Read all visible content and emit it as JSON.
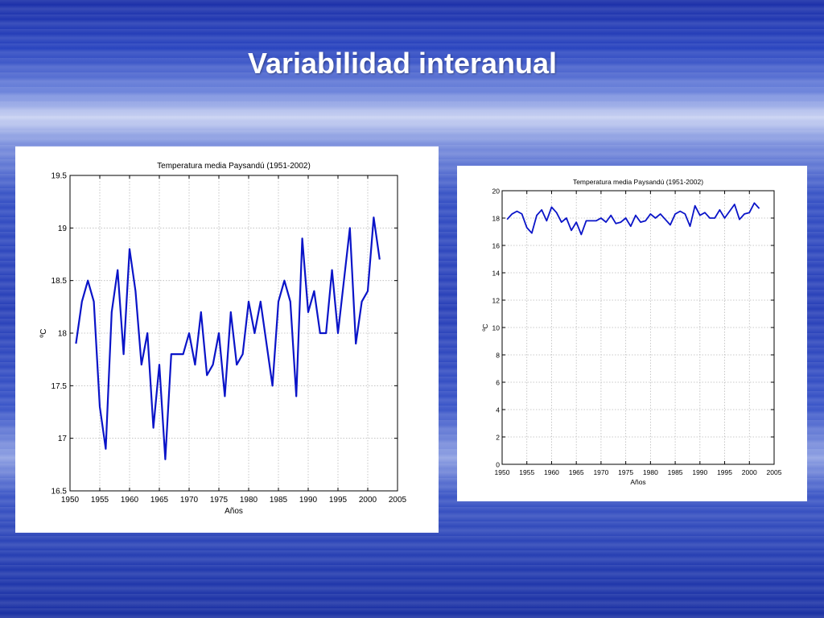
{
  "slide": {
    "title": "Variabilidad interanual"
  },
  "chart_data": [
    {
      "type": "line",
      "title": "Temperatura media Paysandú (1951-2002)",
      "xlabel": "Años",
      "ylabel": "ºC",
      "xlim": [
        1950,
        2005
      ],
      "ylim": [
        16.5,
        19.5
      ],
      "xticks": [
        1950,
        1955,
        1960,
        1965,
        1970,
        1975,
        1980,
        1985,
        1990,
        1995,
        2000,
        2005
      ],
      "yticks": [
        16.5,
        17,
        17.5,
        18,
        18.5,
        19,
        19.5
      ],
      "ytick_labels": [
        "16.5",
        "17",
        "17.5",
        "18",
        "18.5",
        "19",
        "19.5"
      ],
      "grid": true,
      "color": "#0a14c8",
      "x": [
        1951,
        1952,
        1953,
        1954,
        1955,
        1956,
        1957,
        1958,
        1959,
        1960,
        1961,
        1962,
        1963,
        1964,
        1965,
        1966,
        1967,
        1968,
        1969,
        1970,
        1971,
        1972,
        1973,
        1974,
        1975,
        1976,
        1977,
        1978,
        1979,
        1980,
        1981,
        1982,
        1983,
        1984,
        1985,
        1986,
        1987,
        1988,
        1989,
        1990,
        1991,
        1992,
        1993,
        1994,
        1995,
        1996,
        1997,
        1998,
        1999,
        2000,
        2001,
        2002
      ],
      "values": [
        17.9,
        18.3,
        18.5,
        18.3,
        17.3,
        16.9,
        18.2,
        18.6,
        17.8,
        18.8,
        18.4,
        17.7,
        18.0,
        17.1,
        17.7,
        16.8,
        17.8,
        17.8,
        17.8,
        18.0,
        17.7,
        18.2,
        17.6,
        17.7,
        18.0,
        17.4,
        18.2,
        17.7,
        17.8,
        18.3,
        18.0,
        18.3,
        17.9,
        17.5,
        18.3,
        18.5,
        18.3,
        17.4,
        18.9,
        18.2,
        18.4,
        18.0,
        18.0,
        18.6,
        18.0,
        18.5,
        19.0,
        17.9,
        18.3,
        18.4,
        19.1,
        18.7
      ]
    },
    {
      "type": "line",
      "title": "Temperatura media Paysandú (1951-2002)",
      "xlabel": "Años",
      "ylabel": "ºC",
      "xlim": [
        1950,
        2005
      ],
      "ylim": [
        0,
        20
      ],
      "xticks": [
        1950,
        1955,
        1960,
        1965,
        1970,
        1975,
        1980,
        1985,
        1990,
        1995,
        2000,
        2005
      ],
      "yticks": [
        0,
        2,
        4,
        6,
        8,
        10,
        12,
        14,
        16,
        18,
        20
      ],
      "ytick_labels": [
        "0",
        "2",
        "4",
        "6",
        "8",
        "10",
        "12",
        "14",
        "16",
        "18",
        "20"
      ],
      "grid": true,
      "color": "#0a14c8",
      "x": [
        1951,
        1952,
        1953,
        1954,
        1955,
        1956,
        1957,
        1958,
        1959,
        1960,
        1961,
        1962,
        1963,
        1964,
        1965,
        1966,
        1967,
        1968,
        1969,
        1970,
        1971,
        1972,
        1973,
        1974,
        1975,
        1976,
        1977,
        1978,
        1979,
        1980,
        1981,
        1982,
        1983,
        1984,
        1985,
        1986,
        1987,
        1988,
        1989,
        1990,
        1991,
        1992,
        1993,
        1994,
        1995,
        1996,
        1997,
        1998,
        1999,
        2000,
        2001,
        2002
      ],
      "values": [
        17.9,
        18.3,
        18.5,
        18.3,
        17.3,
        16.9,
        18.2,
        18.6,
        17.8,
        18.8,
        18.4,
        17.7,
        18.0,
        17.1,
        17.7,
        16.8,
        17.8,
        17.8,
        17.8,
        18.0,
        17.7,
        18.2,
        17.6,
        17.7,
        18.0,
        17.4,
        18.2,
        17.7,
        17.8,
        18.3,
        18.0,
        18.3,
        17.9,
        17.5,
        18.3,
        18.5,
        18.3,
        17.4,
        18.9,
        18.2,
        18.4,
        18.0,
        18.0,
        18.6,
        18.0,
        18.5,
        19.0,
        17.9,
        18.3,
        18.4,
        19.1,
        18.7
      ]
    }
  ]
}
